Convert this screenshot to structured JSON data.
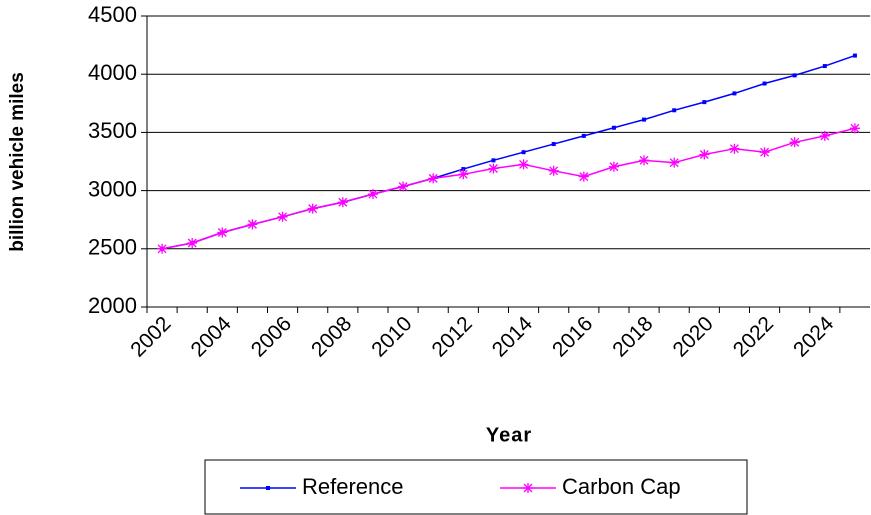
{
  "chart_data": {
    "type": "line",
    "x_label": "Year",
    "y_label": "billion vehicle miles",
    "categories": [
      "2002",
      null,
      "2004",
      null,
      "2006",
      null,
      "2008",
      null,
      "2010",
      null,
      "2012",
      null,
      "2014",
      null,
      "2016",
      null,
      "2018",
      null,
      "2020",
      null,
      "2022",
      null,
      "2024",
      null
    ],
    "series": [
      {
        "name": "Reference",
        "color": "#0000ff",
        "marker": "square",
        "values": [
          2500,
          2550,
          2640,
          2710,
          2775,
          2845,
          2900,
          2970,
          3035,
          3105,
          3185,
          3260,
          3330,
          3400,
          3470,
          3540,
          3610,
          3690,
          3760,
          3835,
          3920,
          3990,
          4070,
          4160
        ]
      },
      {
        "name": "Carbon Cap",
        "color": "#ff00ff",
        "marker": "asterisk",
        "values": [
          2500,
          2550,
          2640,
          2710,
          2775,
          2845,
          2900,
          2970,
          3035,
          3105,
          3140,
          3190,
          3225,
          3170,
          3120,
          3205,
          3260,
          3240,
          3310,
          3360,
          3330,
          3415,
          3470,
          3535
        ]
      }
    ],
    "ylim": [
      2000,
      4500
    ],
    "yticks": [
      2000,
      2500,
      3000,
      3500,
      4000,
      4500
    ],
    "grid": true,
    "legend": "bottom"
  }
}
